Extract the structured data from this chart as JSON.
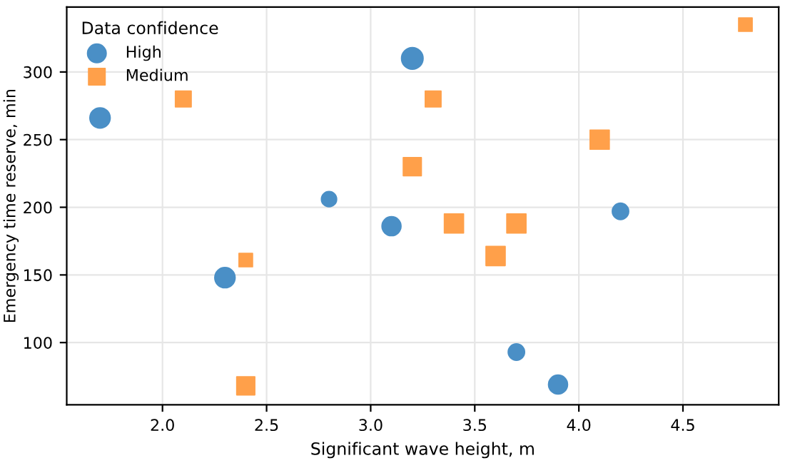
{
  "chart_data": {
    "type": "bubble",
    "xlabel": "Significant wave height, m",
    "ylabel": "Emergency time reserve, min",
    "legend_title": "Data confidence",
    "legend": "top left",
    "grid": true,
    "xlim": [
      1.54,
      4.96
    ],
    "xticks": [
      {
        "value": 2.0,
        "label": "2.0"
      },
      {
        "value": 2.5,
        "label": "2.5"
      },
      {
        "value": 3.0,
        "label": "3.0"
      },
      {
        "value": 3.5,
        "label": "3.5"
      },
      {
        "value": 4.0,
        "label": "4.0"
      },
      {
        "value": 4.5,
        "label": "4.5"
      }
    ],
    "ylim": [
      54,
      348
    ],
    "yticks": [
      100,
      150,
      200,
      250,
      300
    ],
    "series": [
      {
        "name": "High",
        "color": "#4a8fc6",
        "marker": "circle",
        "x": [
          1.7,
          2.3,
          2.8,
          3.1,
          3.2,
          3.7,
          3.9,
          4.2
        ],
        "values": [
          266,
          148,
          206,
          186,
          310,
          93,
          69,
          197
        ],
        "sizes": [
          0.89,
          0.89,
          0.5,
          0.78,
          1,
          0.58,
          0.78,
          0.58
        ]
      },
      {
        "name": "Medium",
        "color": "#ffa04a",
        "marker": "square",
        "x": [
          2.1,
          2.4,
          2.4,
          3.2,
          3.3,
          3.4,
          3.6,
          3.7,
          4.1,
          4.8
        ],
        "values": [
          280,
          161,
          68,
          230,
          280,
          188,
          164,
          188,
          250,
          335
        ],
        "sizes": [
          0.68,
          0.5,
          0.89,
          0.89,
          0.68,
          1,
          1,
          1,
          1,
          0.5
        ]
      }
    ]
  }
}
